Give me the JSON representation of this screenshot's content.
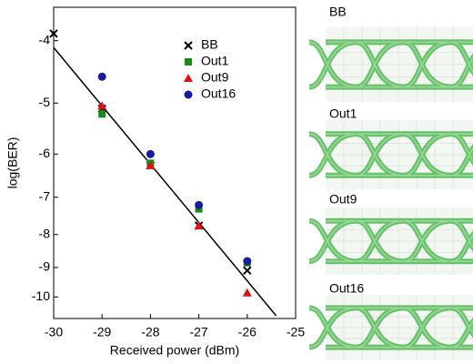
{
  "chart_data": {
    "type": "scatter",
    "x_label": "Received power (dBm)",
    "y_label": "log(BER)",
    "x": [
      -30,
      -29,
      -28,
      -27,
      -26
    ],
    "series": [
      {
        "name": "BB",
        "color": "#000000",
        "marker": "x",
        "values": [
          -3.9,
          -5.1,
          -6.25,
          -7.75,
          -9.1
        ]
      },
      {
        "name": "Out1",
        "color": "#1a8a1a",
        "marker": "square",
        "values": [
          null,
          -5.2,
          -6.2,
          -7.3,
          -8.85
        ]
      },
      {
        "name": "Out9",
        "color": "#e01010",
        "marker": "triangle",
        "values": [
          null,
          -5.05,
          -6.25,
          -7.75,
          -9.85
        ]
      },
      {
        "name": "Out16",
        "color": "#1a1aa0",
        "marker": "circle",
        "values": [
          null,
          -4.55,
          -6.0,
          -7.2,
          -8.8
        ]
      }
    ],
    "fit_line": {
      "x": [
        -30,
        -25.4
      ],
      "values": [
        -4.1,
        -10.7
      ],
      "color": "#000000"
    },
    "xlim": [
      -30,
      -25
    ],
    "xticks": [
      -30,
      -29,
      -28,
      -27,
      -26,
      -25
    ],
    "ylim": [
      -3.55,
      -10.8
    ],
    "yticks": [
      -4,
      -5,
      -6,
      -7,
      -8,
      -9,
      -10
    ],
    "yscale": "neglog",
    "legend": "upper-center"
  },
  "eye_diagrams": {
    "labels": [
      "BB",
      "Out1",
      "Out9",
      "Out16"
    ],
    "color": "#3cb043"
  }
}
